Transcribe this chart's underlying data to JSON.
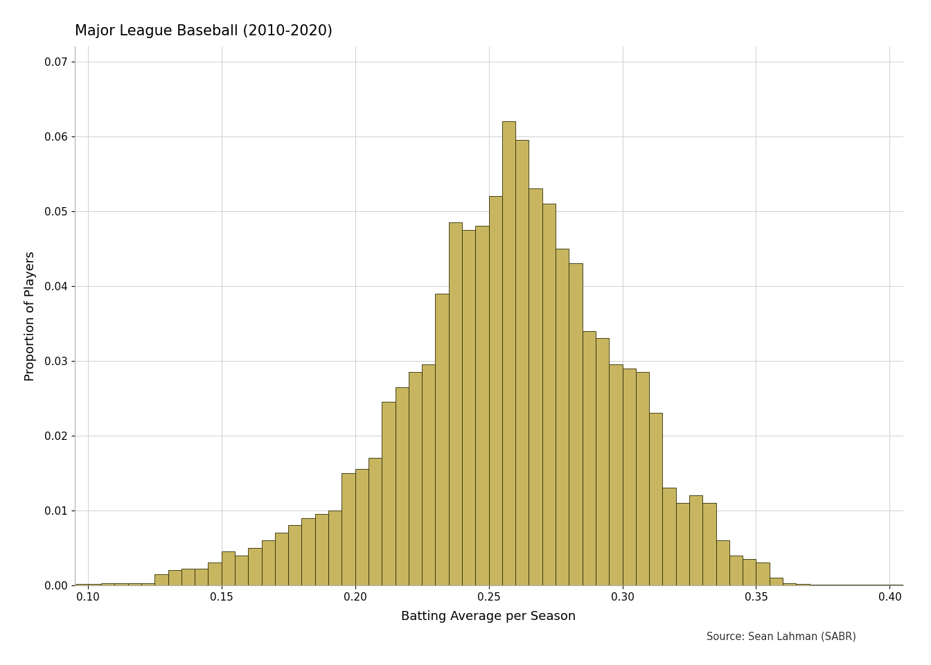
{
  "title": "Major League Baseball (2010-2020)",
  "xlabel": "Batting Average per Season",
  "ylabel": "Proportion of Players",
  "source_text": "Source: Sean Lahman (SABR)",
  "bar_color": "#C8B560",
  "bar_edgecolor": "#2a2a00",
  "background_color": "#ffffff",
  "grid_color": "#d0d0d0",
  "xlim": [
    0.095,
    0.405
  ],
  "ylim": [
    0.0,
    0.072
  ],
  "xticks": [
    0.1,
    0.15,
    0.2,
    0.25,
    0.3,
    0.35,
    0.4
  ],
  "yticks": [
    0.0,
    0.01,
    0.02,
    0.03,
    0.04,
    0.05,
    0.06,
    0.07
  ],
  "bin_width": 0.005,
  "bin_starts": [
    0.095,
    0.1,
    0.105,
    0.11,
    0.115,
    0.12,
    0.125,
    0.13,
    0.135,
    0.14,
    0.145,
    0.15,
    0.155,
    0.16,
    0.165,
    0.17,
    0.175,
    0.18,
    0.185,
    0.19,
    0.195,
    0.2,
    0.205,
    0.21,
    0.215,
    0.22,
    0.225,
    0.23,
    0.235,
    0.24,
    0.245,
    0.25,
    0.255,
    0.26,
    0.265,
    0.27,
    0.275,
    0.28,
    0.285,
    0.29,
    0.295,
    0.3,
    0.305,
    0.31,
    0.315,
    0.32,
    0.325,
    0.33,
    0.335,
    0.34,
    0.345,
    0.35,
    0.355,
    0.36,
    0.365,
    0.37,
    0.375,
    0.38,
    0.385,
    0.39,
    0.395,
    0.4
  ],
  "bar_heights": [
    0.0002,
    0.0002,
    0.0003,
    0.0003,
    0.0003,
    0.0003,
    0.0015,
    0.002,
    0.0022,
    0.0022,
    0.003,
    0.0045,
    0.004,
    0.005,
    0.006,
    0.007,
    0.008,
    0.009,
    0.0095,
    0.01,
    0.015,
    0.0155,
    0.017,
    0.0245,
    0.0265,
    0.0285,
    0.0295,
    0.039,
    0.0485,
    0.0475,
    0.048,
    0.052,
    0.062,
    0.0595,
    0.053,
    0.051,
    0.045,
    0.043,
    0.034,
    0.033,
    0.0295,
    0.029,
    0.0285,
    0.023,
    0.013,
    0.011,
    0.012,
    0.011,
    0.006,
    0.004,
    0.0035,
    0.003,
    0.001,
    0.0003,
    0.0002,
    0.0001,
    0.0001,
    0.0001,
    0.0001,
    0.0001,
    0.0001,
    0.0001
  ]
}
